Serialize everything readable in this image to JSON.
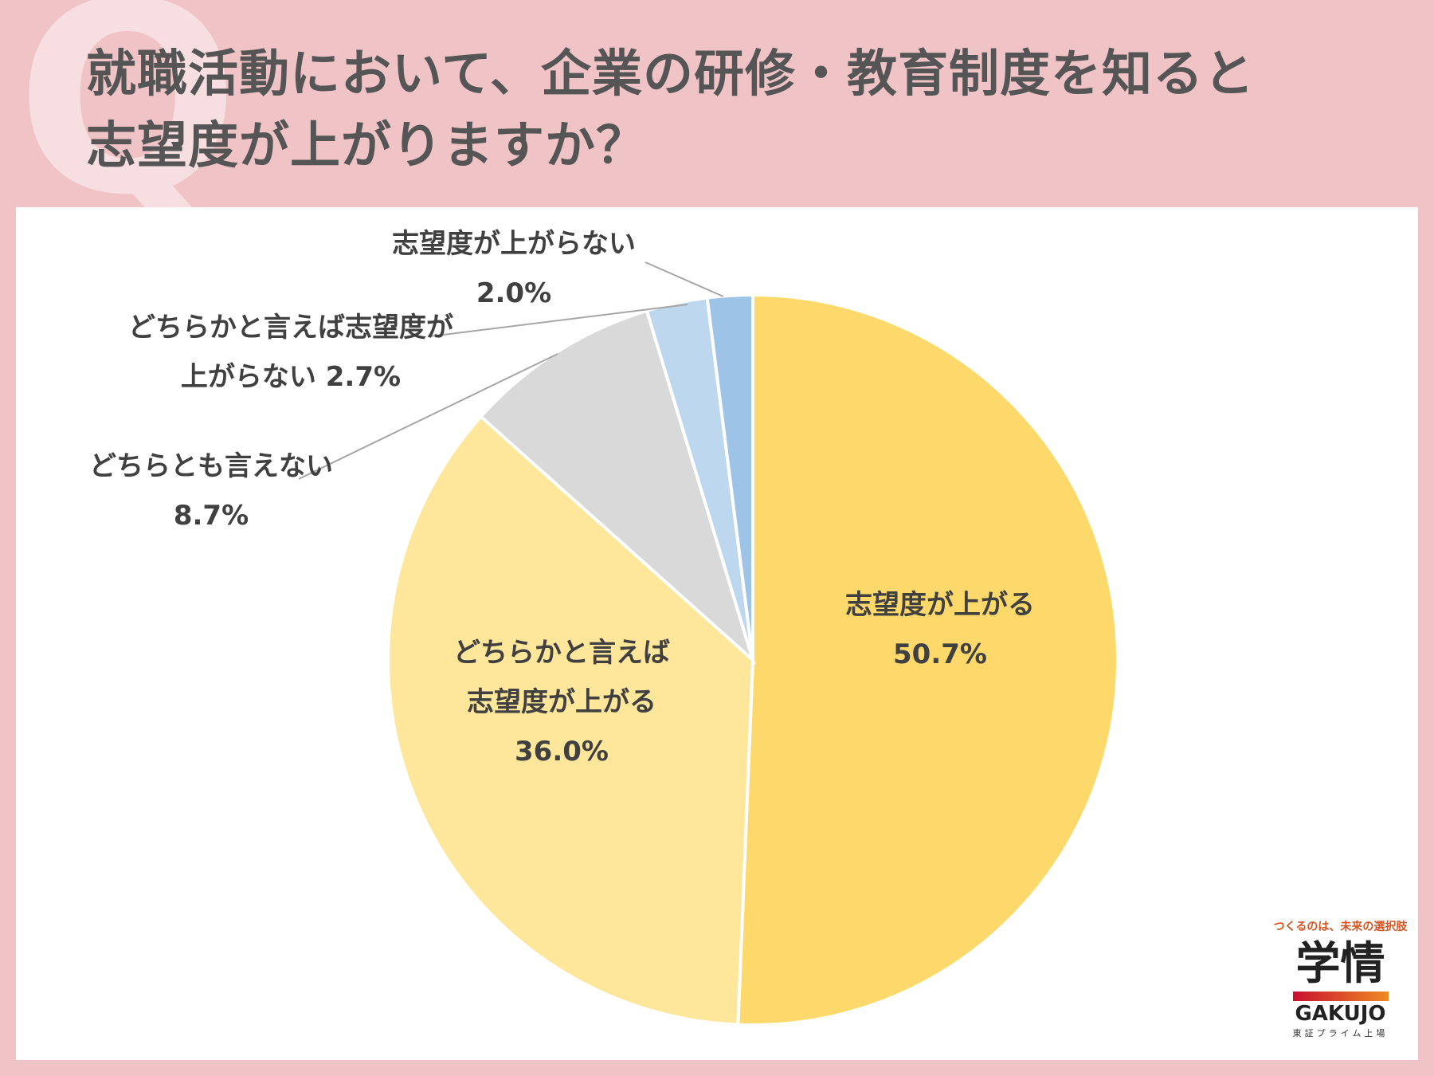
{
  "title_lines": [
    "就職活動において、企業の研修・教育制度を知ると",
    "志望度が上がりますか？"
  ],
  "q_mark": "Q",
  "logo": {
    "tagline": "つくるのは、未来の選択肢",
    "kanji": "学情",
    "english": "GAKUJO",
    "sub": "東証プライム上場"
  },
  "chart_data": {
    "type": "pie",
    "start": "12 o'clock",
    "direction": "clockwise",
    "slices": [
      {
        "label_lines": [
          "志望度が上がる"
        ],
        "pct_text": "50.7%",
        "value": 50.7,
        "color": "#fdd86a"
      },
      {
        "label_lines": [
          "どちらかと言えば",
          "志望度が上がる"
        ],
        "pct_text": "36.0%",
        "value": 36.0,
        "color": "#fee69b"
      },
      {
        "label_lines": [
          "どちらとも言えない"
        ],
        "pct_text": "8.7%",
        "value": 8.7,
        "color": "#d9d9d9"
      },
      {
        "label_lines": [
          "どちらかと言えば志望度が",
          "上がらない 2.7%"
        ],
        "pct_text": "",
        "value": 2.7,
        "color": "#bdd7ee"
      },
      {
        "label_lines": [
          "志望度が上がらない"
        ],
        "pct_text": "2.0%",
        "value": 2.0,
        "color": "#9dc3e6"
      }
    ]
  }
}
